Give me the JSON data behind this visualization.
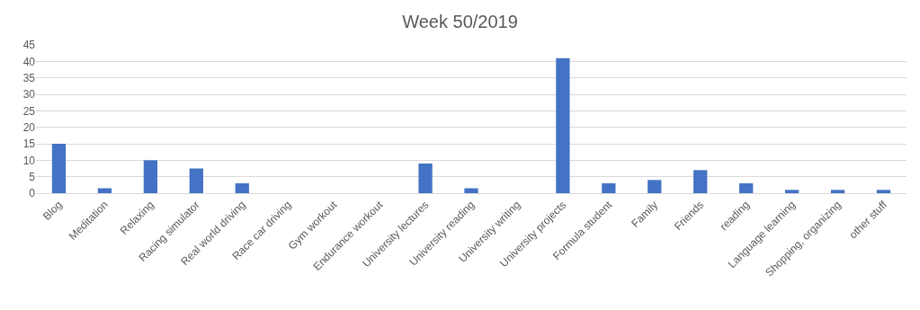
{
  "chart_data": {
    "type": "bar",
    "title": "Week 50/2019",
    "categories": [
      "Blog",
      "Meditation",
      "Relaxing",
      "Racing simulator",
      "Real world driving",
      "Race car driving",
      "Gym workout",
      "Endurance workout",
      "University lectures",
      "University reading",
      "University writing",
      "University projects",
      "Formula student",
      "Family",
      "Friends",
      "reading",
      "Language learning",
      "Shopping, organizing",
      "other stuff"
    ],
    "values": [
      15,
      1.5,
      10,
      7.5,
      3,
      0,
      0,
      0,
      9,
      1.5,
      0,
      41,
      3,
      4,
      7,
      3,
      1,
      1,
      1
    ],
    "color": "#4472c4",
    "ylim": [
      0,
      45
    ],
    "yticks": [
      0,
      5,
      10,
      15,
      20,
      25,
      30,
      35,
      40,
      45
    ],
    "grid": "y"
  }
}
